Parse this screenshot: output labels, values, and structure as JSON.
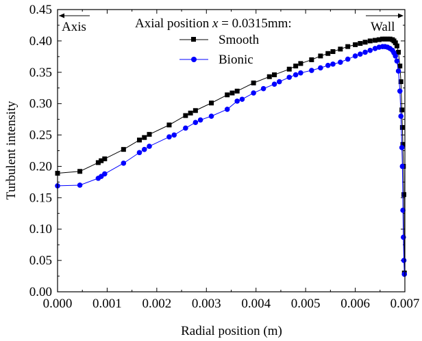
{
  "chart_data": {
    "type": "line",
    "xlabel": "Radial position (m)",
    "ylabel": "Turbulent intensity",
    "xlim": [
      0,
      0.007
    ],
    "ylim": [
      0,
      0.45
    ],
    "x_ticks": [
      "0.000",
      "0.001",
      "0.002",
      "0.003",
      "0.004",
      "0.005",
      "0.006",
      "0.007"
    ],
    "y_ticks": [
      "0.00",
      "0.05",
      "0.10",
      "0.15",
      "0.20",
      "0.25",
      "0.30",
      "0.35",
      "0.40",
      "0.45"
    ],
    "legend": {
      "title_prefix": "Axial position ",
      "title_var": "x",
      "title_suffix": " = 0.0315mm:",
      "placement": "top-center"
    },
    "annotations": {
      "left": "Axis",
      "right": "Wall"
    },
    "grid": false,
    "series": [
      {
        "name": "Smooth",
        "color": "#000000",
        "marker": "square",
        "x": [
          0.0,
          0.00045,
          0.00082,
          0.00088,
          0.00095,
          0.00133,
          0.00165,
          0.00175,
          0.00185,
          0.00225,
          0.00258,
          0.00268,
          0.00278,
          0.0031,
          0.00342,
          0.00352,
          0.00362,
          0.00395,
          0.00427,
          0.00437,
          0.00467,
          0.0048,
          0.0049,
          0.00512,
          0.0053,
          0.00545,
          0.00555,
          0.0057,
          0.00585,
          0.006,
          0.0061,
          0.0062,
          0.0063,
          0.0064,
          0.00648,
          0.00655,
          0.0066,
          0.00665,
          0.0067,
          0.00675,
          0.00678,
          0.00681,
          0.00684,
          0.00687,
          0.0069,
          0.00692,
          0.00694,
          0.00695,
          0.00696,
          0.00697,
          0.00698,
          0.00699
        ],
        "y": [
          0.189,
          0.192,
          0.206,
          0.209,
          0.212,
          0.227,
          0.242,
          0.246,
          0.251,
          0.266,
          0.281,
          0.285,
          0.289,
          0.301,
          0.314,
          0.317,
          0.32,
          0.333,
          0.343,
          0.346,
          0.355,
          0.36,
          0.364,
          0.37,
          0.376,
          0.38,
          0.383,
          0.387,
          0.391,
          0.394,
          0.396,
          0.398,
          0.4,
          0.401,
          0.402,
          0.403,
          0.403,
          0.403,
          0.403,
          0.402,
          0.4,
          0.397,
          0.392,
          0.382,
          0.36,
          0.335,
          0.29,
          0.262,
          0.235,
          0.2,
          0.155,
          0.03
        ]
      },
      {
        "name": "Bionic",
        "color": "#0000ff",
        "marker": "circle",
        "x": [
          0.0,
          0.00045,
          0.00082,
          0.00088,
          0.00095,
          0.00133,
          0.00165,
          0.00175,
          0.00185,
          0.00225,
          0.00235,
          0.00258,
          0.00278,
          0.00288,
          0.0031,
          0.00342,
          0.00362,
          0.00372,
          0.00395,
          0.00415,
          0.00437,
          0.00447,
          0.00467,
          0.0048,
          0.0049,
          0.00512,
          0.0053,
          0.00545,
          0.00555,
          0.0057,
          0.00585,
          0.006,
          0.0061,
          0.0062,
          0.0063,
          0.0064,
          0.00648,
          0.00655,
          0.0066,
          0.00665,
          0.0067,
          0.00675,
          0.00678,
          0.00681,
          0.00684,
          0.00687,
          0.0069,
          0.00692,
          0.00694,
          0.00695,
          0.00696,
          0.00697,
          0.00698,
          0.00699
        ],
        "y": [
          0.169,
          0.17,
          0.181,
          0.184,
          0.188,
          0.205,
          0.222,
          0.227,
          0.232,
          0.247,
          0.25,
          0.261,
          0.27,
          0.274,
          0.28,
          0.291,
          0.304,
          0.307,
          0.317,
          0.324,
          0.331,
          0.335,
          0.342,
          0.346,
          0.349,
          0.353,
          0.357,
          0.361,
          0.363,
          0.366,
          0.371,
          0.376,
          0.379,
          0.382,
          0.385,
          0.388,
          0.39,
          0.391,
          0.391,
          0.39,
          0.388,
          0.385,
          0.381,
          0.376,
          0.368,
          0.352,
          0.32,
          0.28,
          0.23,
          0.2,
          0.13,
          0.087,
          0.05,
          0.028
        ]
      }
    ]
  }
}
